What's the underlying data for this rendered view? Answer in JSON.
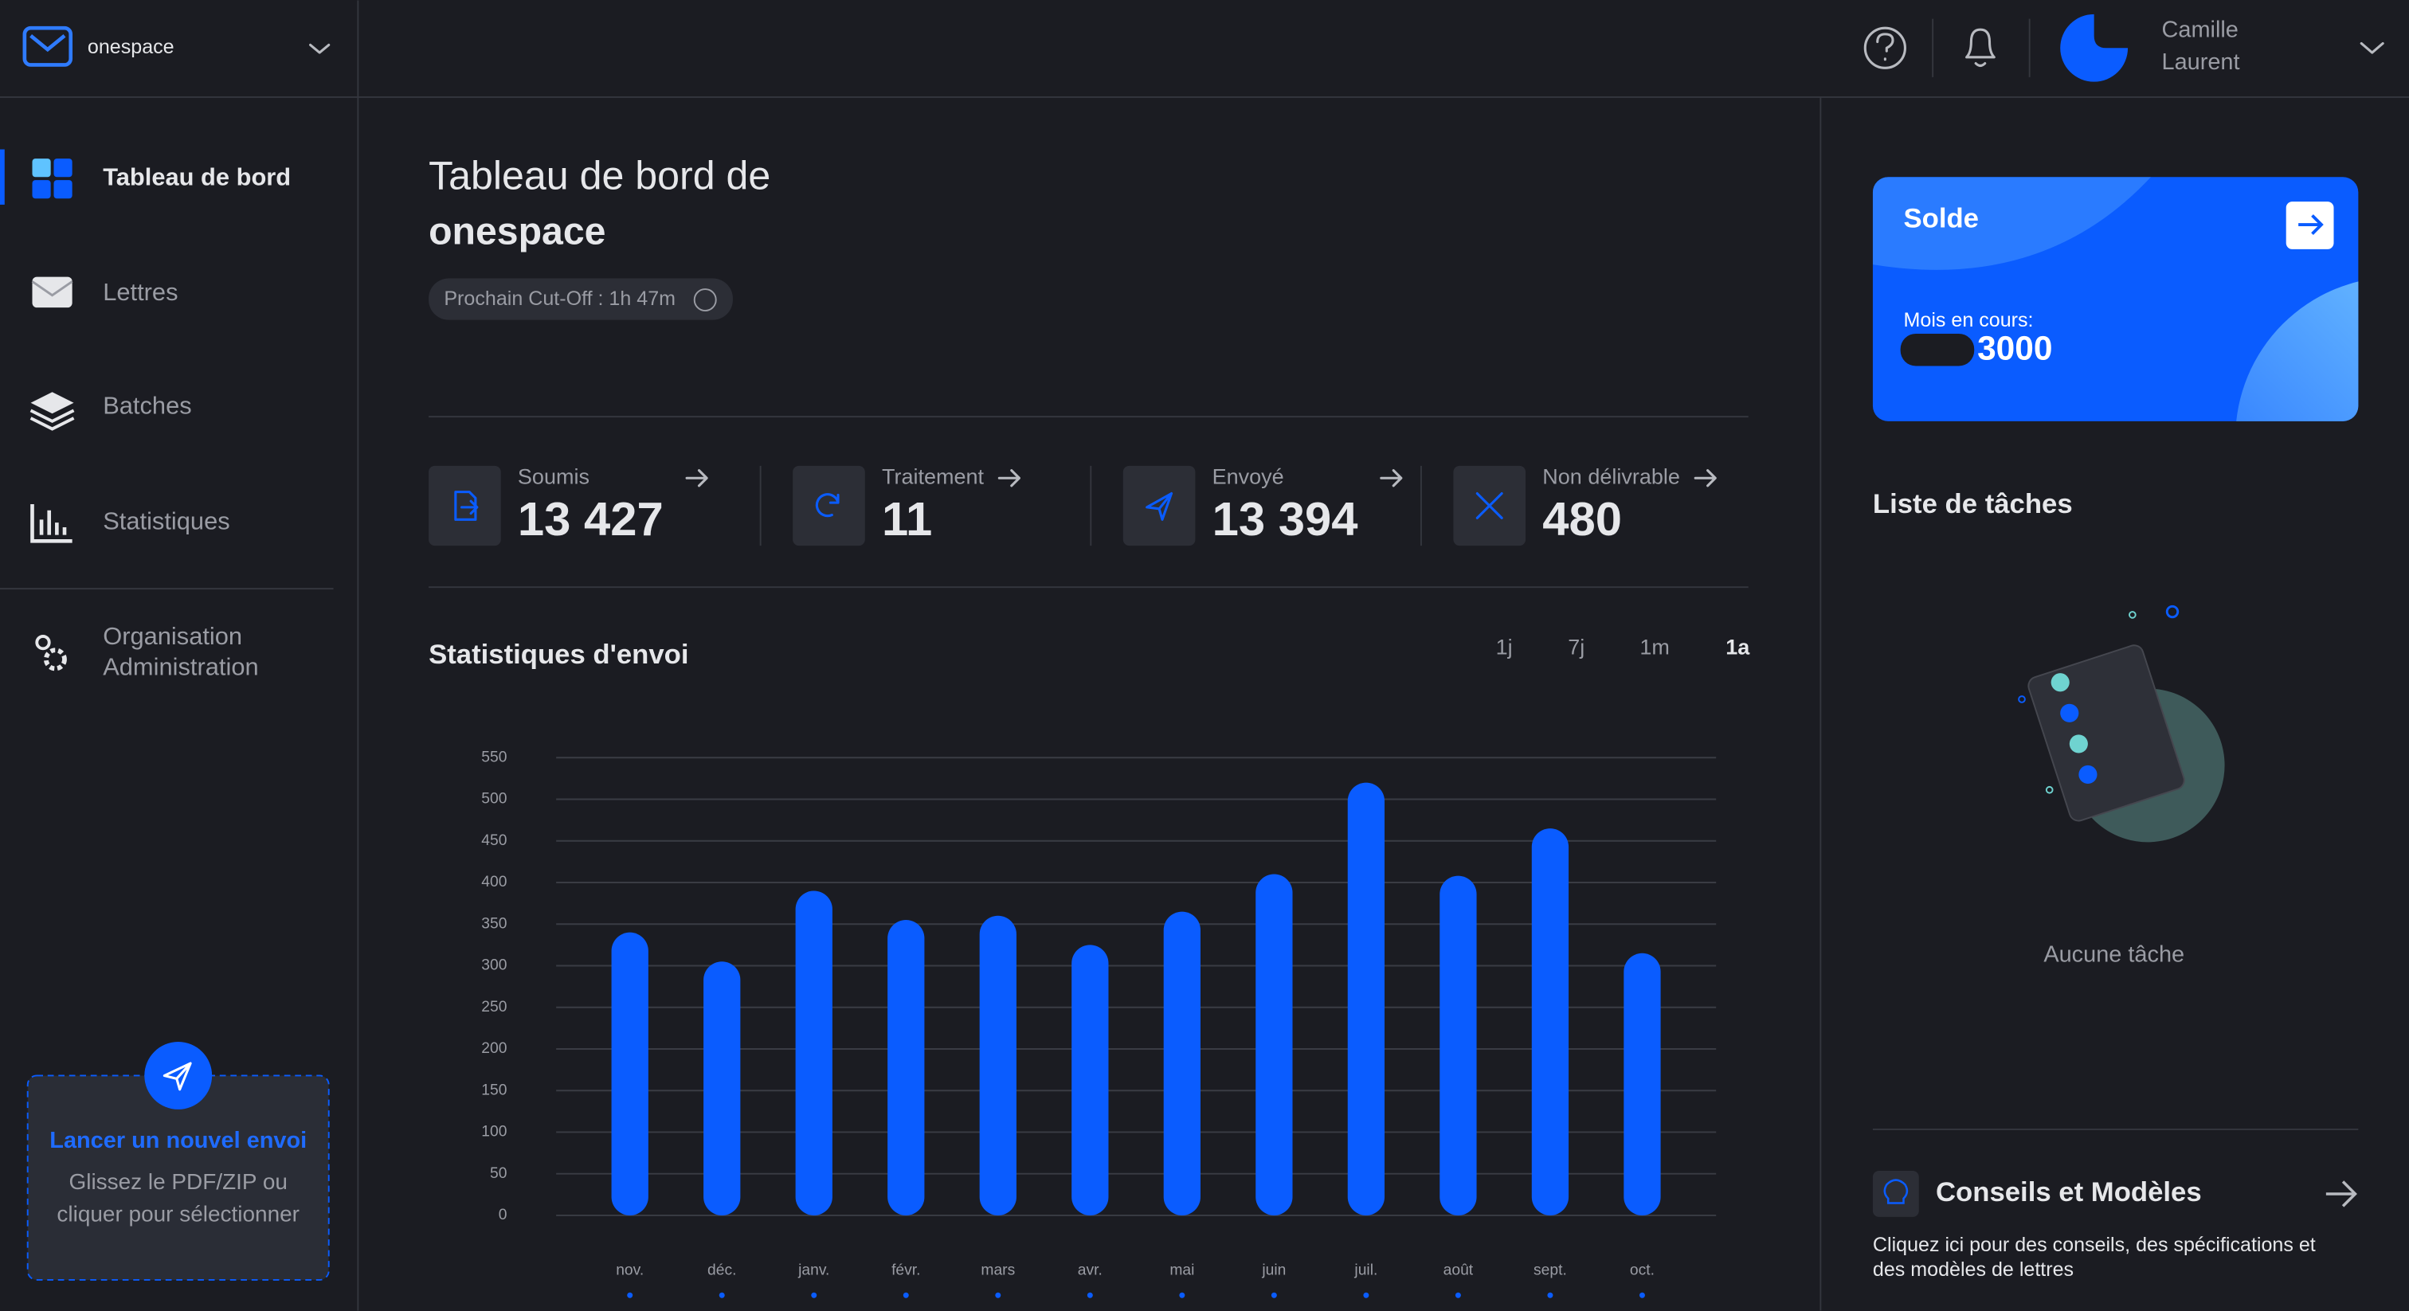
{
  "header": {
    "workspace": "onespace",
    "user_first_name": "Camille",
    "user_last_name": "Laurent"
  },
  "sidebar": {
    "nav": [
      "Tableau de bord",
      "Lettres",
      "Batches",
      "Statistiques"
    ],
    "admin": [
      "Organisation",
      "Administration"
    ],
    "upload": {
      "title": "Lancer un nouvel envoi",
      "lines": [
        "Glissez le PDF/ZIP ou",
        "cliquer pour sélectionner"
      ]
    }
  },
  "main": {
    "title": "Tableau de bord de",
    "subtitle": "onespace",
    "cutoff": "Prochain Cut-Off : 1h 47m",
    "stats": [
      {
        "label": "Soumis",
        "value": "13 427"
      },
      {
        "label": "Traitement",
        "value": "11"
      },
      {
        "label": "Envoyé",
        "value": "13 394"
      },
      {
        "label": "Non délivrable",
        "value": "480"
      }
    ],
    "range_options": [
      "1j",
      "7j",
      "1m",
      "1a"
    ],
    "active_range": 3
  },
  "chart_data": {
    "type": "bar",
    "title": "Statistiques d'envoi",
    "categories": [
      "nov.",
      "déc.",
      "janv.",
      "févr.",
      "mars",
      "avr.",
      "mai",
      "juin",
      "juil.",
      "août",
      "sept.",
      "oct."
    ],
    "values": [
      340,
      305,
      390,
      355,
      360,
      325,
      365,
      410,
      520,
      408,
      465,
      315
    ],
    "color": "#0a5cff",
    "ylim": [
      0,
      550
    ],
    "yticks": [
      0,
      50,
      100,
      150,
      200,
      250,
      300,
      350,
      400,
      450,
      500,
      550
    ],
    "grid": true
  },
  "right_panel": {
    "balance": {
      "title": "Solde",
      "label": "Mois en cours:",
      "amount": "3000"
    },
    "tasks": {
      "title": "Liste de tâches",
      "empty": "Aucune tâche"
    },
    "tips": {
      "title": "Conseils et Modèles",
      "lines": [
        "Cliquez ici pour des conseils, des spécifications et",
        "des modèles de lettres"
      ]
    }
  }
}
